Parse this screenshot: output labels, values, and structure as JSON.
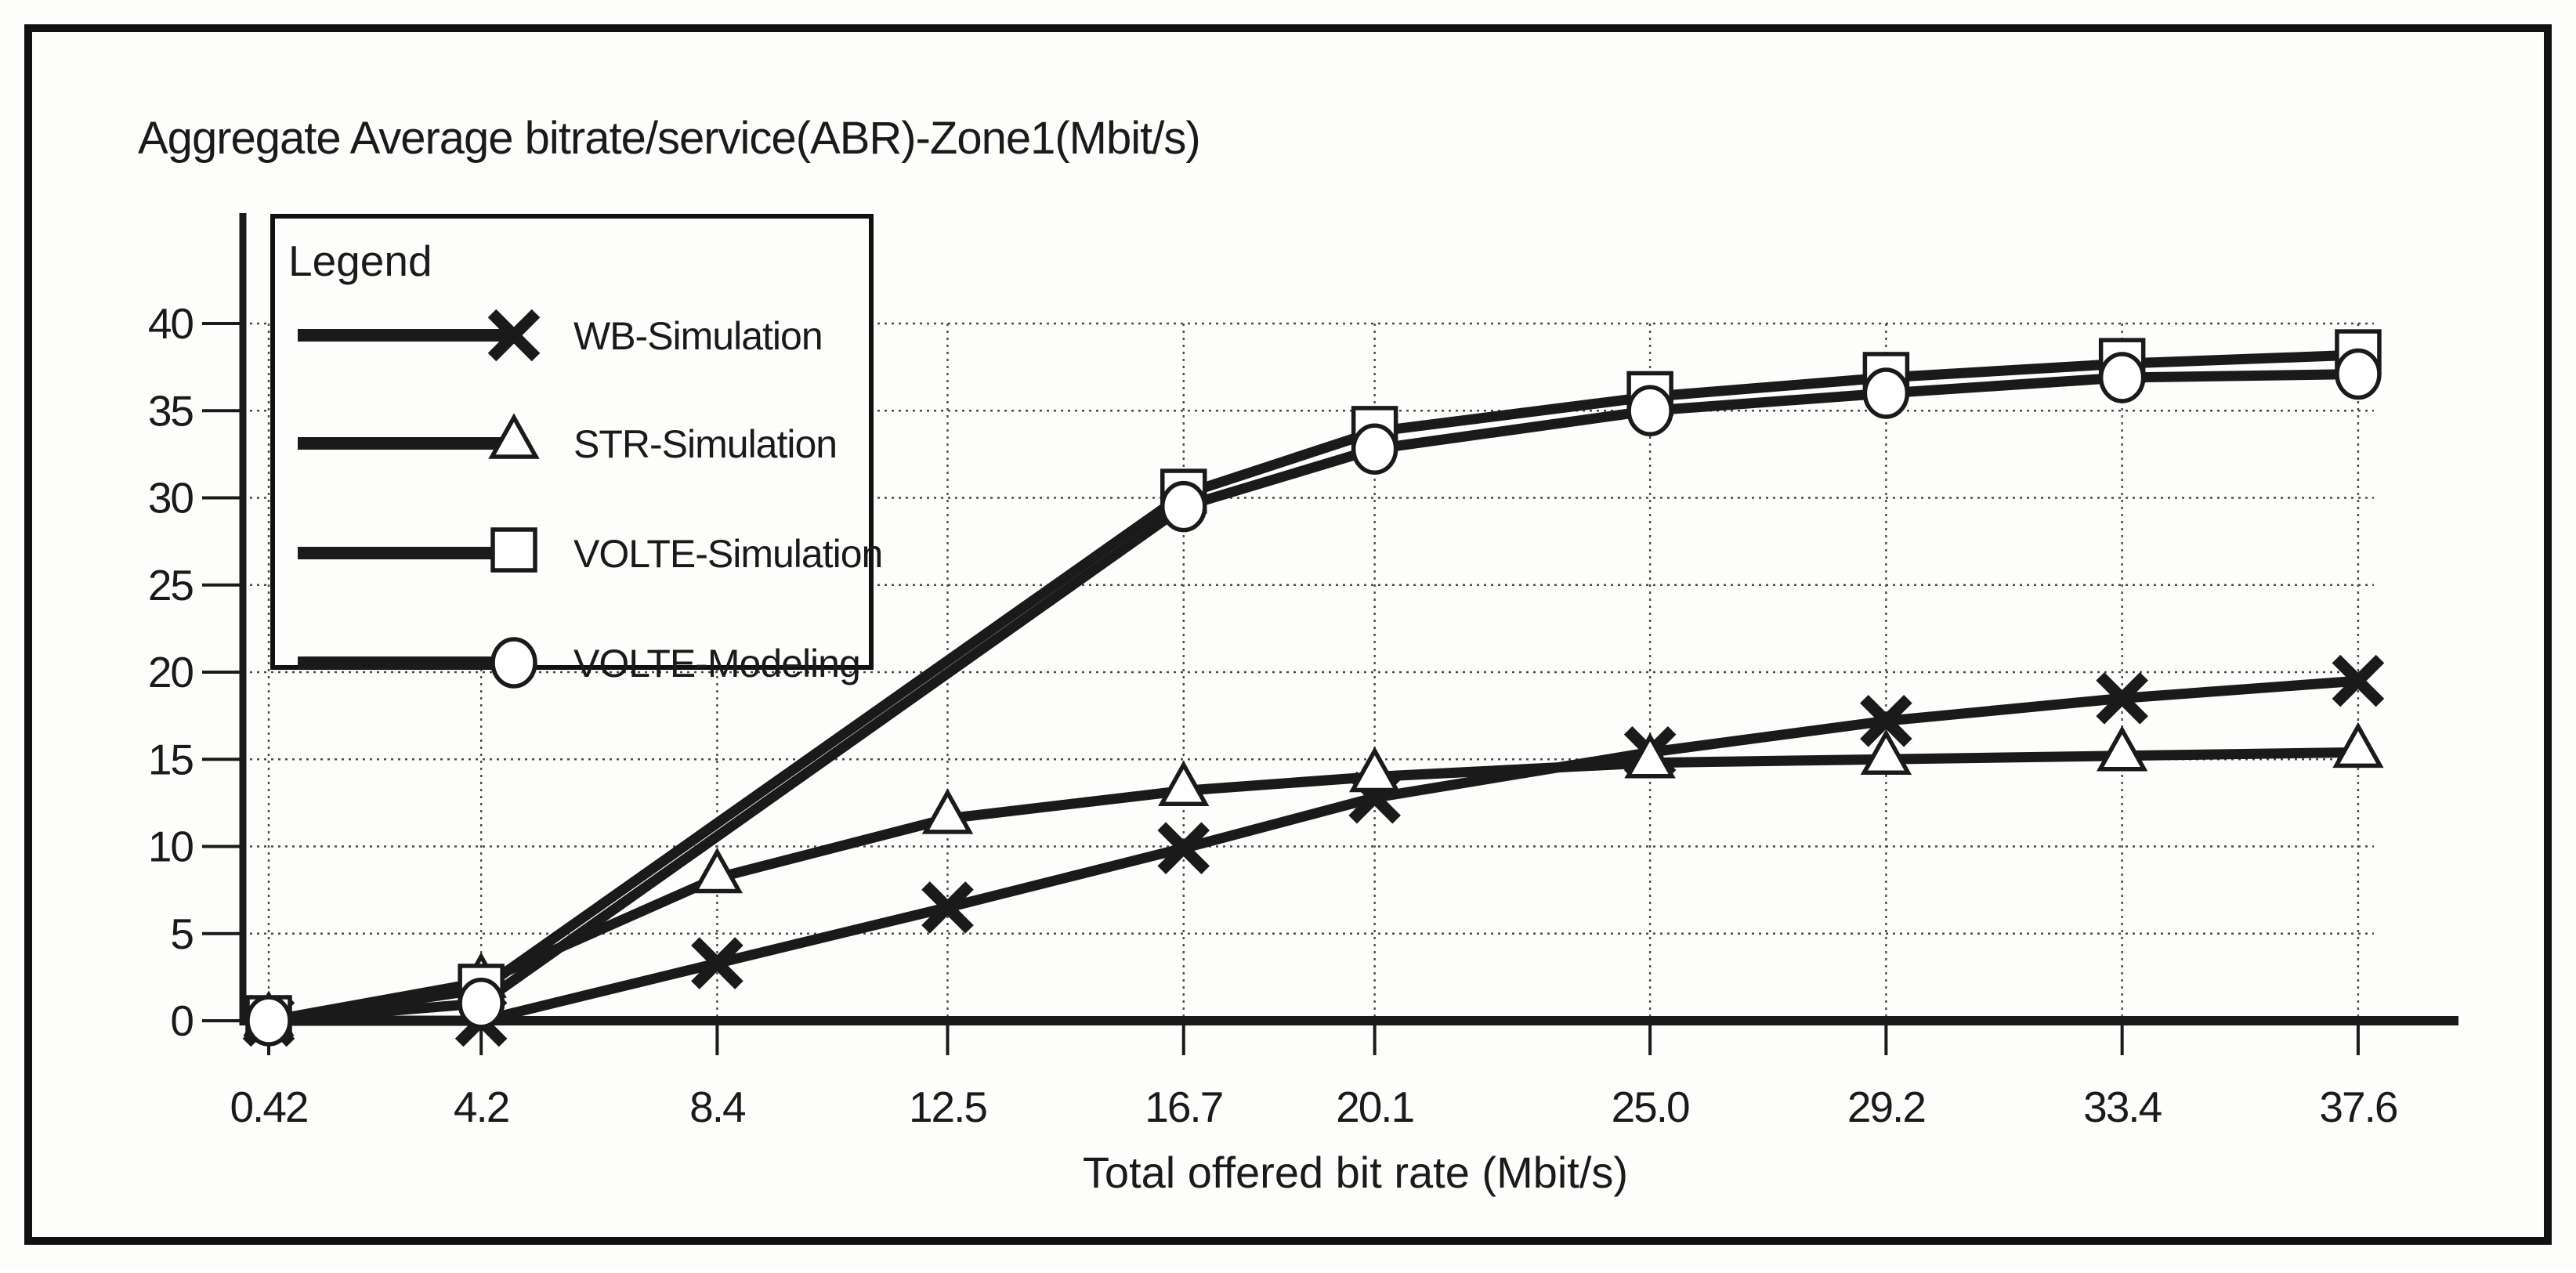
{
  "colors": {
    "ink": "#1a1a1a",
    "grid": "#4a4a4a",
    "marker_fill": "#ffffff",
    "background": "#fdfdfb"
  },
  "chart_data": {
    "type": "line",
    "title": "Aggregate Average bitrate/service(ABR)-Zone1(Mbit/s)",
    "xlabel": "Total offered bit rate (Mbit/s)",
    "ylabel": "",
    "legend_title": "Legend",
    "legend_position": "top-left",
    "grid": true,
    "x_tick_labels": [
      "0.42",
      "4.2",
      "8.4",
      "12.5",
      "16.7",
      "20.1",
      "25.0",
      "29.2",
      "33.4",
      "37.6"
    ],
    "x_ticks": [
      0.42,
      4.2,
      8.4,
      12.5,
      16.7,
      20.1,
      25.0,
      29.2,
      33.4,
      37.6
    ],
    "y_ticks": [
      0,
      5,
      10,
      15,
      20,
      25,
      30,
      35,
      40
    ],
    "ylim": [
      0,
      40
    ],
    "xlim": [
      0.42,
      37.6
    ],
    "series": [
      {
        "name": "WB-Simulation",
        "marker": "x",
        "x": [
          0.42,
          4.2,
          8.4,
          12.5,
          16.7,
          20.1,
          25.0,
          29.2,
          33.4,
          37.6
        ],
        "y": [
          0,
          0,
          3.3,
          6.5,
          9.9,
          12.8,
          15.4,
          17.2,
          18.5,
          19.5
        ]
      },
      {
        "name": "STR-Simulation",
        "marker": "triangle",
        "x": [
          0.42,
          4.2,
          8.4,
          12.5,
          16.7,
          20.1,
          25.0,
          29.2,
          33.4,
          37.6
        ],
        "y": [
          0,
          2.2,
          8.2,
          11.6,
          13.2,
          14.0,
          14.8,
          15.0,
          15.2,
          15.4
        ]
      },
      {
        "name": "VOLTE-Simulation",
        "marker": "square",
        "x": [
          0.42,
          4.2,
          16.7,
          20.1,
          25.0,
          29.2,
          33.4,
          37.6
        ],
        "y": [
          0,
          1.8,
          30.2,
          33.8,
          35.8,
          36.9,
          37.7,
          38.2
        ]
      },
      {
        "name": "VOLTE-Modeling",
        "marker": "circle",
        "x": [
          0.42,
          4.2,
          16.7,
          20.1,
          25.0,
          29.2,
          33.4,
          37.6
        ],
        "y": [
          0,
          1.0,
          29.5,
          32.8,
          35.0,
          36.0,
          36.9,
          37.1
        ]
      }
    ]
  }
}
